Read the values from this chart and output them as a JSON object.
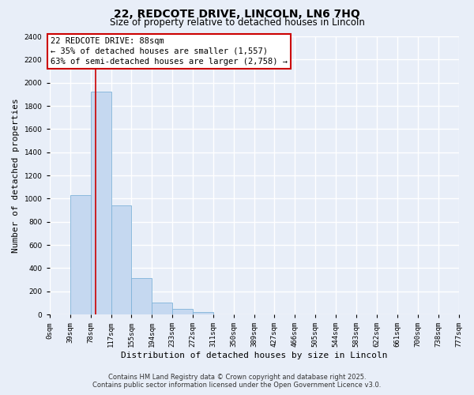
{
  "title": "22, REDCOTE DRIVE, LINCOLN, LN6 7HQ",
  "subtitle": "Size of property relative to detached houses in Lincoln",
  "xlabel": "Distribution of detached houses by size in Lincoln",
  "ylabel": "Number of detached properties",
  "bar_counts": [
    0,
    1030,
    1920,
    940,
    315,
    105,
    50,
    20,
    0,
    0,
    0,
    0,
    0,
    0,
    0,
    0,
    0,
    0,
    0,
    0
  ],
  "bin_edges": [
    0,
    39,
    78,
    117,
    155,
    194,
    233,
    272,
    311,
    350,
    389,
    427,
    466,
    505,
    544,
    583,
    622,
    661,
    700,
    738,
    777
  ],
  "tick_labels": [
    "0sqm",
    "39sqm",
    "78sqm",
    "117sqm",
    "155sqm",
    "194sqm",
    "233sqm",
    "272sqm",
    "311sqm",
    "350sqm",
    "389sqm",
    "427sqm",
    "466sqm",
    "505sqm",
    "544sqm",
    "583sqm",
    "622sqm",
    "661sqm",
    "700sqm",
    "738sqm",
    "777sqm"
  ],
  "bar_color": "#c5d8f0",
  "bar_edge_color": "#7fb3d9",
  "property_line_x": 88,
  "property_line_color": "#cc0000",
  "annotation_line1": "22 REDCOTE DRIVE: 88sqm",
  "annotation_line2": "← 35% of detached houses are smaller (1,557)",
  "annotation_line3": "63% of semi-detached houses are larger (2,758) →",
  "ylim": [
    0,
    2400
  ],
  "yticks": [
    0,
    200,
    400,
    600,
    800,
    1000,
    1200,
    1400,
    1600,
    1800,
    2000,
    2200,
    2400
  ],
  "bg_color": "#e8eef8",
  "grid_color": "#ffffff",
  "footer_line1": "Contains HM Land Registry data © Crown copyright and database right 2025.",
  "footer_line2": "Contains public sector information licensed under the Open Government Licence v3.0.",
  "title_fontsize": 10,
  "subtitle_fontsize": 8.5,
  "axis_label_fontsize": 8,
  "tick_fontsize": 6.5,
  "annotation_fontsize": 7.5,
  "footer_fontsize": 6
}
